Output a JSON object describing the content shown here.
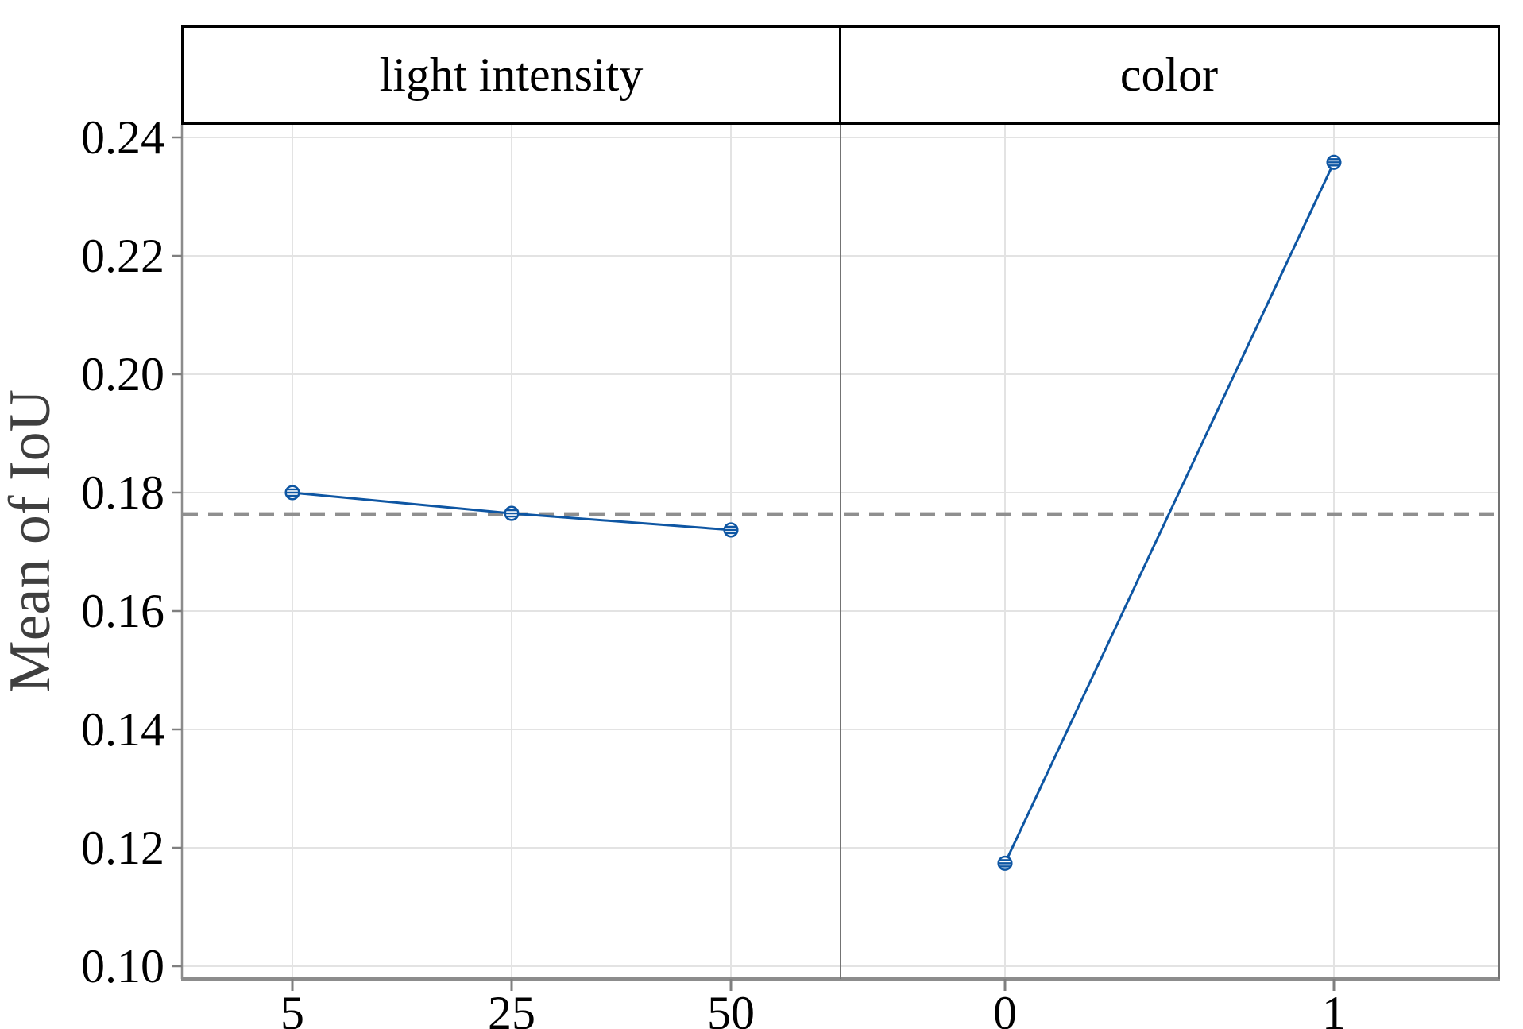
{
  "chart_data": {
    "type": "line",
    "subtype": "main-effects-plot",
    "title": "",
    "ylabel": "Mean of IoU",
    "xlabel": "",
    "ylim": [
      0.098,
      0.242
    ],
    "y_ticks": [
      "0.24",
      "0.22",
      "0.20",
      "0.18",
      "0.16",
      "0.14",
      "0.12",
      "0.10"
    ],
    "grid": true,
    "legend": "none",
    "panels": [
      {
        "label": "light intensity",
        "categories": [
          "5",
          "25",
          "50"
        ],
        "values": [
          0.18,
          0.1765,
          0.1737
        ]
      },
      {
        "label": "color",
        "categories": [
          "0",
          "1"
        ],
        "values": [
          0.1174,
          0.2358
        ]
      }
    ],
    "reference_line": {
      "value": 0.1764,
      "style": "dashed",
      "meaning": "grand mean"
    },
    "marker": "striped-circle",
    "colors": {
      "series_blue": "#0E56A3",
      "reference_gray": "#8F8F8F",
      "gridline": "#E3E3E3",
      "spine_gray": "#8C8C8C",
      "panel_divider": "#737373",
      "tick_gray": "#7F7F7F",
      "axis_title_gray": "#3F3F3F",
      "header_border": "#000000"
    }
  }
}
